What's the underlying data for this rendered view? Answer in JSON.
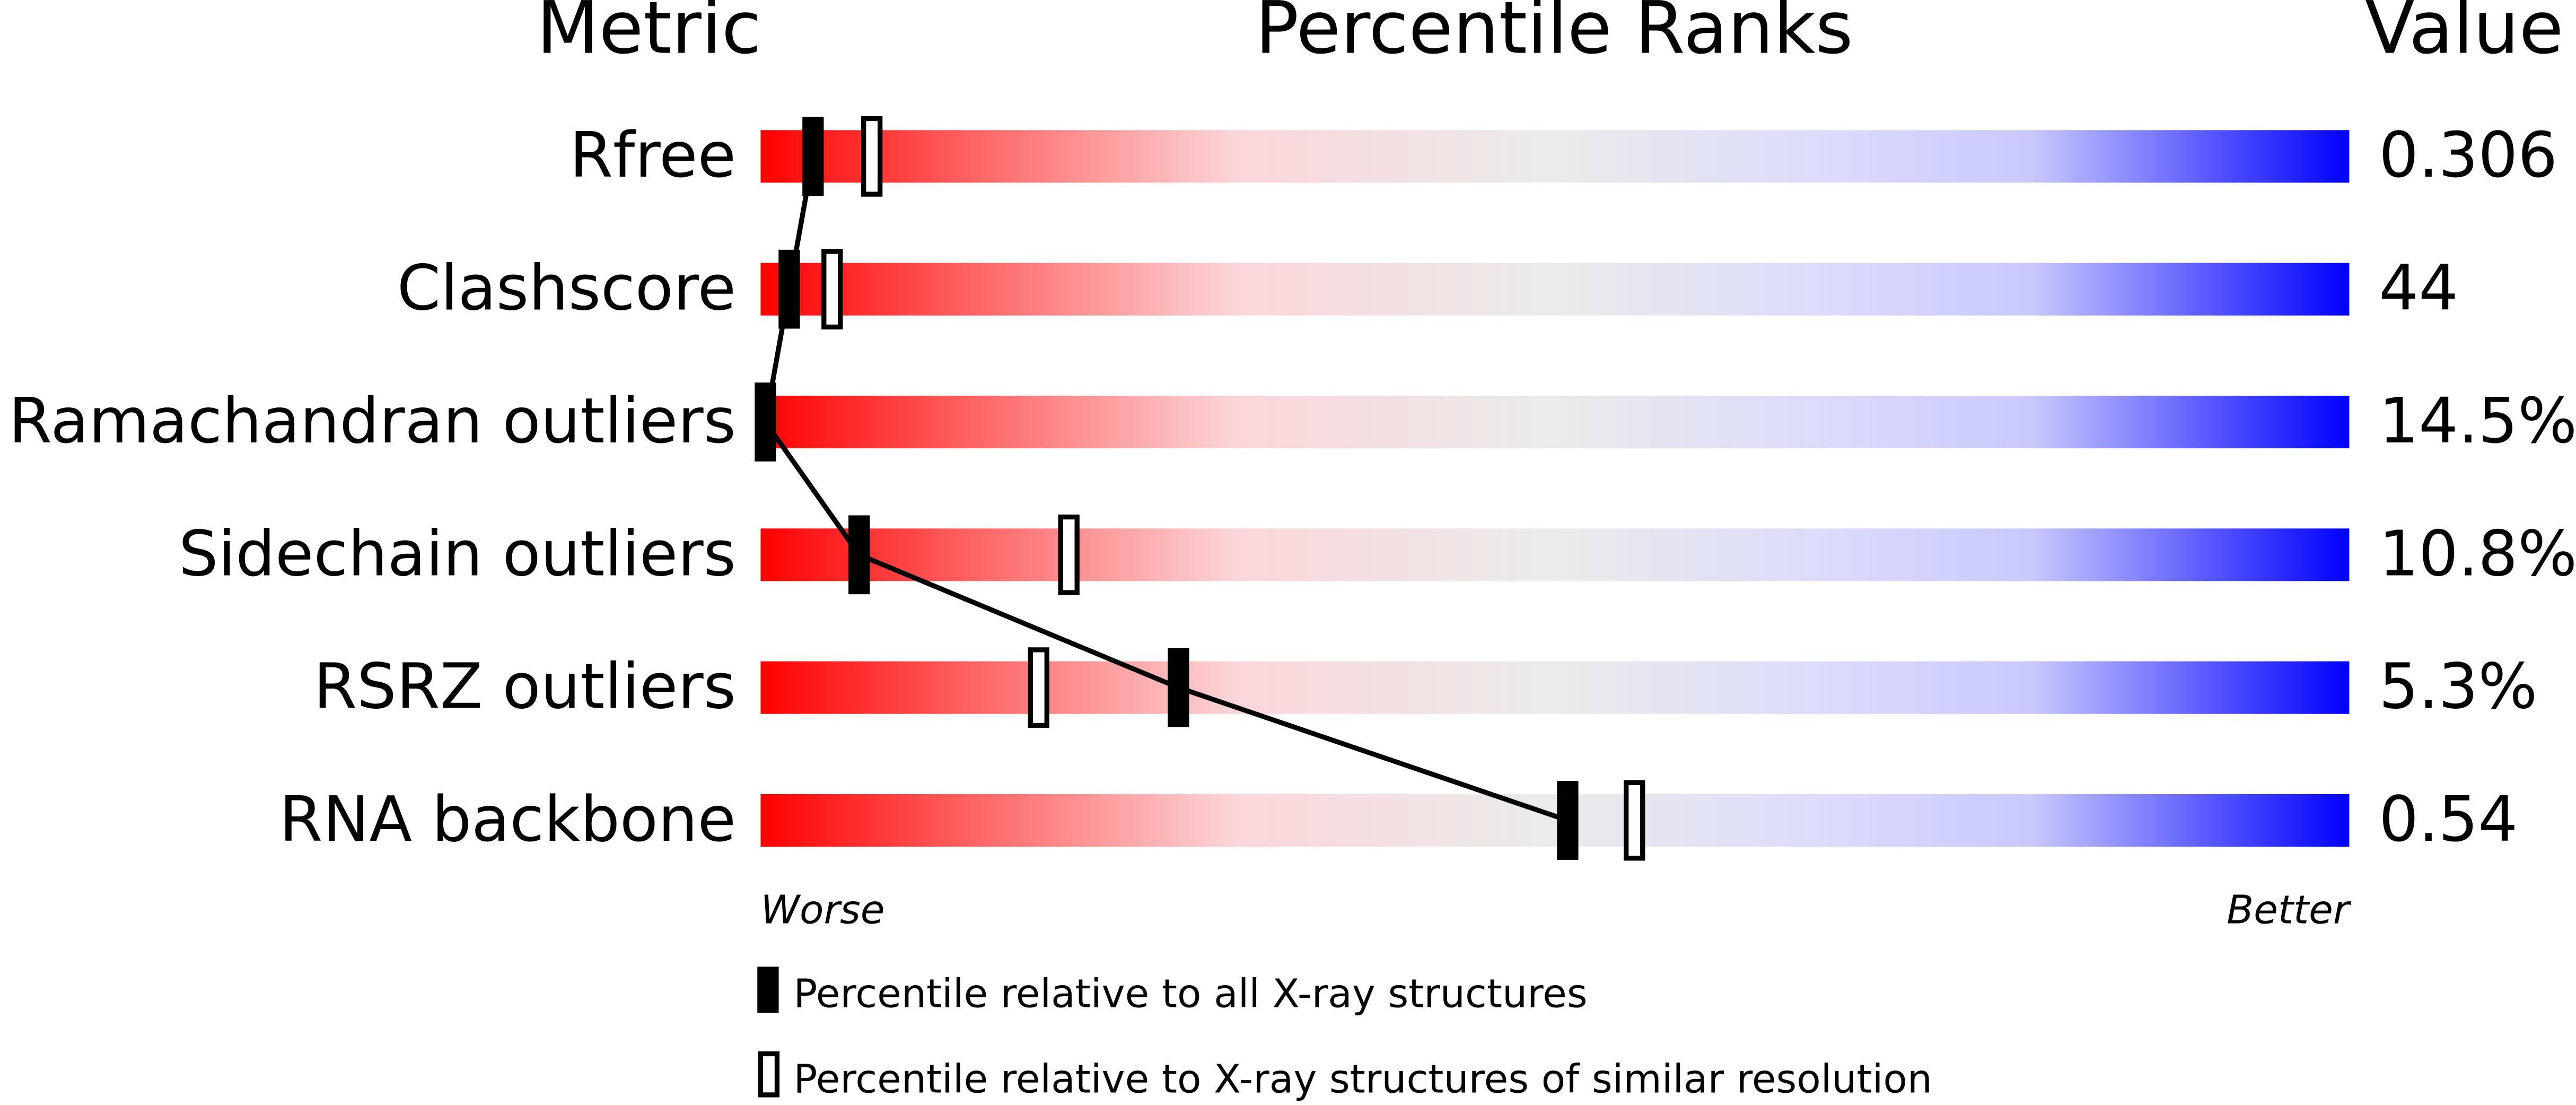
{
  "chart_data": {
    "type": "percentile-slider",
    "headers": [
      "Metric",
      "Percentile Ranks",
      "Value"
    ],
    "categories": [
      "Rfree",
      "Clashscore",
      "Ramachandran outliers",
      "Sidechain outliers",
      "RSRZ outliers",
      "RNA backbone"
    ],
    "metric_values": [
      "0.306",
      "44",
      "14.5%",
      "10.8%",
      "5.3%",
      "0.54"
    ],
    "xlim": [
      0,
      100
    ],
    "x_axis_labels": [
      "Worse",
      "Better"
    ],
    "series": [
      {
        "name": "Percentile relative to all X-ray structures",
        "color": "#000000",
        "values": [
          3.3,
          1.8,
          0.3,
          6.2,
          26.3,
          50.8
        ]
      },
      {
        "name": "Percentile relative to X-ray structures of similar resolution",
        "color": "#000000",
        "values": [
          7.0,
          4.5,
          null,
          19.4,
          17.5,
          55.0
        ]
      }
    ]
  }
}
